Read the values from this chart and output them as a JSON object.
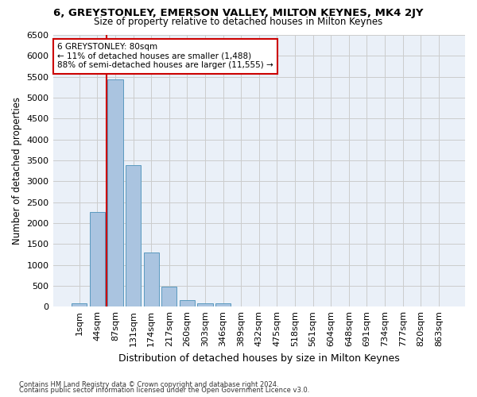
{
  "title1": "6, GREYSTONLEY, EMERSON VALLEY, MILTON KEYNES, MK4 2JY",
  "title2": "Size of property relative to detached houses in Milton Keynes",
  "xlabel": "Distribution of detached houses by size in Milton Keynes",
  "ylabel": "Number of detached properties",
  "footer1": "Contains HM Land Registry data © Crown copyright and database right 2024.",
  "footer2": "Contains public sector information licensed under the Open Government Licence v3.0.",
  "annotation_title": "6 GREYSTONLEY: 80sqm",
  "annotation_line1": "← 11% of detached houses are smaller (1,488)",
  "annotation_line2": "88% of semi-detached houses are larger (11,555) →",
  "bar_labels": [
    "1sqm",
    "44sqm",
    "87sqm",
    "131sqm",
    "174sqm",
    "217sqm",
    "260sqm",
    "303sqm",
    "346sqm",
    "389sqm",
    "432sqm",
    "475sqm",
    "518sqm",
    "561sqm",
    "604sqm",
    "648sqm",
    "691sqm",
    "734sqm",
    "777sqm",
    "820sqm",
    "863sqm"
  ],
  "bar_values": [
    70,
    2270,
    5430,
    3380,
    1290,
    470,
    160,
    75,
    75,
    0,
    0,
    0,
    0,
    0,
    0,
    0,
    0,
    0,
    0,
    0,
    0
  ],
  "bar_color": "#aac4e0",
  "bar_edge_color": "#5a9abf",
  "grid_color": "#cccccc",
  "bg_color": "#eaf0f8",
  "vline_color": "#cc0000",
  "annotation_box_color": "#ffffff",
  "annotation_box_edge": "#cc0000",
  "ylim": [
    0,
    6500
  ],
  "yticks": [
    0,
    500,
    1000,
    1500,
    2000,
    2500,
    3000,
    3500,
    4000,
    4500,
    5000,
    5500,
    6000,
    6500
  ]
}
